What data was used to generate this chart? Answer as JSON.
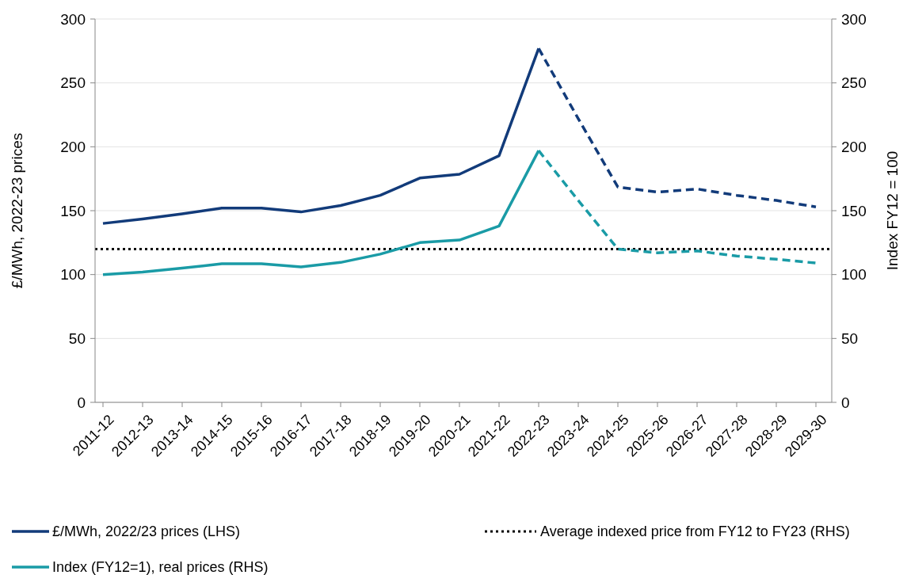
{
  "chart_data": {
    "type": "line",
    "ylabel": "£/MWh, 2022-23 prices",
    "y2label": "Index FY12 = 100",
    "categories": [
      "2011-12",
      "2012-13",
      "2013-14",
      "2014-15",
      "2015-16",
      "2016-17",
      "2017-18",
      "2018-19",
      "2019-20",
      "2020-21",
      "2021-22",
      "2022-23",
      "2023-24",
      "2024-25",
      "2025-26",
      "2026-27",
      "2027-28",
      "2028-29",
      "2029-30"
    ],
    "series": [
      {
        "name": "£/MWh, 2022/23 prices (LHS)",
        "color": "#123b7a",
        "line_style": "solid",
        "values": [
          140,
          143.5,
          147.5,
          152,
          152,
          149,
          154,
          162,
          175.5,
          178.5,
          193,
          277,
          null,
          null,
          null,
          null,
          null,
          null,
          null
        ]
      },
      {
        "color": "#123b7a",
        "line_style": "dashed",
        "values": [
          null,
          null,
          null,
          null,
          null,
          null,
          null,
          null,
          null,
          null,
          null,
          277,
          222,
          168.5,
          164.5,
          167,
          162,
          158,
          153
        ]
      },
      {
        "name": "Index (FY12=1), real prices (RHS)",
        "color": "#1a9ba6",
        "line_style": "solid",
        "values": [
          100,
          102,
          105,
          108.5,
          108.5,
          106,
          109.5,
          116,
          125,
          127,
          138,
          197,
          null,
          null,
          null,
          null,
          null,
          null,
          null
        ]
      },
      {
        "color": "#1a9ba6",
        "line_style": "dashed",
        "values": [
          null,
          null,
          null,
          null,
          null,
          null,
          null,
          null,
          null,
          null,
          null,
          197,
          158,
          120,
          117,
          118.5,
          114.5,
          112,
          109
        ]
      }
    ],
    "ref_lines": [
      {
        "axis": "y",
        "value": 120,
        "label": "Average indexed price from FY12 to FY23 (RHS)",
        "color": "#000000",
        "line_style": "dotted"
      }
    ],
    "ylim": [
      0,
      300
    ],
    "yticks": [
      0,
      50,
      100,
      150,
      200,
      250,
      300
    ],
    "y2lim": [
      0,
      300
    ],
    "y2ticks": [
      0,
      50,
      100,
      150,
      200,
      250,
      300
    ],
    "grid": "y",
    "legend": "bottom",
    "marker": "none"
  }
}
